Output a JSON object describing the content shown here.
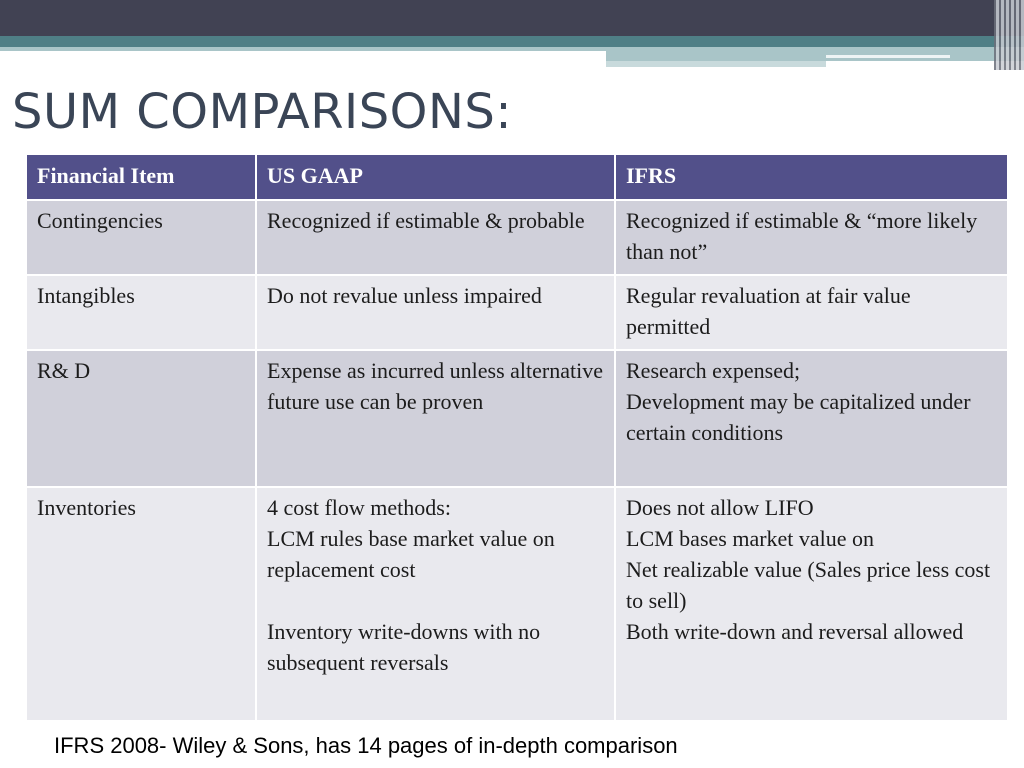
{
  "slide": {
    "title": "SUM COMPARISONS:",
    "footer": "IFRS 2008- Wiley & Sons, has 14 pages of in-depth comparison",
    "colors": {
      "header_bg": "#52508a",
      "row_odd": "#d0d0da",
      "row_even": "#e9e9ee",
      "title": "#3a4556",
      "band_dark": "#414253",
      "band_teal": "#4f7f86"
    }
  },
  "table": {
    "headers": [
      "Financial Item",
      "US GAAP",
      "IFRS"
    ],
    "rows": [
      [
        "Contingencies",
        "Recognized if estimable & probable",
        "Recognized if estimable & “more likely than not”"
      ],
      [
        "Intangibles",
        "Do not revalue unless impaired",
        "Regular revaluation at fair value permitted"
      ],
      [
        "R& D",
        "Expense as incurred unless alternative future use can be proven",
        "Research expensed;\nDevelopment may be capitalized under certain conditions"
      ],
      [
        "Inventories",
        "4 cost flow methods:\nLCM rules base market value on replacement cost\n\nInventory write-downs with no subsequent reversals",
        "Does not allow LIFO\nLCM bases market value on\nNet realizable value (Sales price less cost to sell)\nBoth write-down and reversal allowed"
      ]
    ]
  }
}
